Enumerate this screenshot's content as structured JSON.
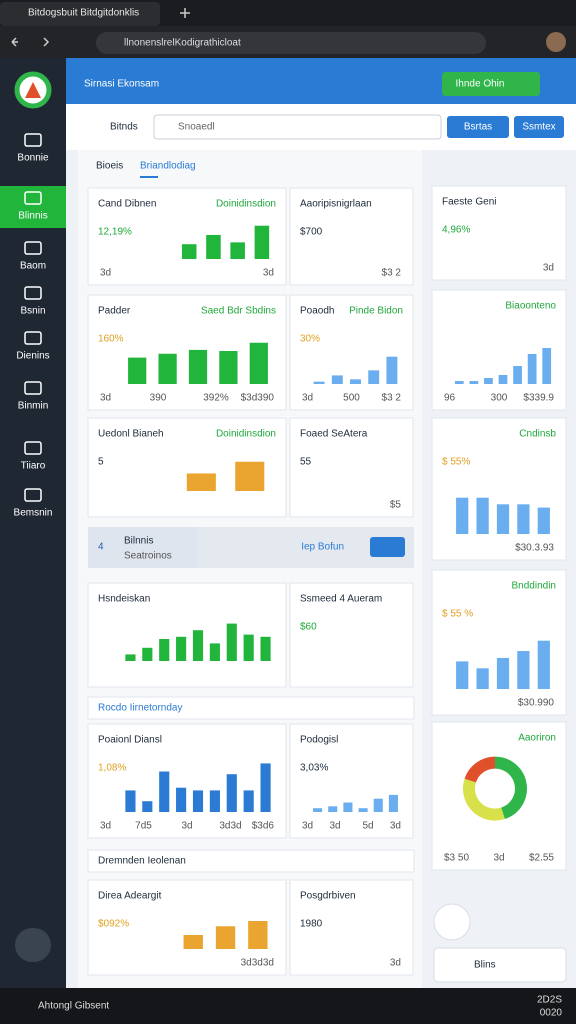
{
  "browser": {
    "tab": "Bitdogsbuit Bitdgitdonklis",
    "url": "llnonenslrelKodigrathicloat"
  },
  "sidebar": [
    "Bonnie",
    "Blinnis",
    "Baom",
    "Bsnin",
    "Dienins",
    "Binmin",
    "Tiiaro",
    "Bemsnin"
  ],
  "header": {
    "title": "Sirnasi Ekonsam",
    "button": "Ihnde Ohin"
  },
  "toolbar": {
    "label": "Bitnds",
    "search": "Snoaedl",
    "buttons": [
      "Bsrtas",
      "Ssmtex"
    ]
  },
  "tabs": [
    "Bioeis",
    "Briandlodiag"
  ],
  "cards": [
    {
      "title": "Cand Dibnen",
      "tag": "Doinidinsdion",
      "value": "12,19%",
      "value_color": "#1fa83a",
      "foot": [
        "3d",
        "3d"
      ],
      "color": "#22b53c",
      "bars": [
        40,
        65,
        45,
        90
      ]
    },
    {
      "title": "Aaoripisnigrlaan",
      "value": "$700",
      "value_color": "#1d2a3a",
      "foot": [
        "$3 2"
      ]
    },
    {
      "title": "Padder",
      "tag": "Saed Bdr Sbdins",
      "value": "160%",
      "value_color": "#e0a020",
      "foot": [
        "3d",
        "390",
        "392%",
        "$3d390"
      ],
      "color": "#22b53c",
      "bars": [
        48,
        55,
        62,
        60,
        75
      ]
    },
    {
      "title": "Poaodh",
      "tag": "Pinde Bidon",
      "value": "30%",
      "value_color": "#e0a020",
      "foot": [
        "3d",
        "500",
        "$3 2"
      ],
      "color": "#6aaef0",
      "bars": [
        6,
        22,
        12,
        35,
        70
      ]
    },
    {
      "title": "Uedonl Bianeh",
      "tag": "Doinidinsdion",
      "value": "5",
      "value_color": "#1d2a3a",
      "foot": [],
      "color": "#eaa530",
      "bars": [
        45,
        75
      ]
    },
    {
      "title": "Foaed SeAtera",
      "value": "55",
      "value_color": "#1d2a3a",
      "foot": [
        "$5"
      ]
    },
    {
      "title": "Hsndeiskan",
      "foot": [],
      "color": "#22b53c",
      "bars": [
        15,
        30,
        50,
        55,
        70,
        40,
        85,
        60,
        55
      ]
    },
    {
      "title": "Ssmeed 4 Aueram",
      "value": "$60",
      "value_color": "#1fa83a",
      "foot": []
    },
    {
      "title": "Poaionl Diansl",
      "value": "1,08%",
      "value_color": "#e0a020",
      "foot": [
        "3d",
        "7d5",
        "3d",
        "3d3d",
        "$3d6"
      ],
      "color": "#2b7bd4",
      "bars": [
        40,
        20,
        75,
        45,
        40,
        40,
        70,
        40,
        90
      ]
    },
    {
      "title": "Podogisl",
      "value": "3,03%",
      "value_color": "#1d2a3a",
      "foot": [
        "3d",
        "3d",
        "5d",
        "3d"
      ],
      "color": "#6aaef0",
      "bars": [
        10,
        15,
        25,
        10,
        35,
        45
      ]
    },
    {
      "title": "Direa Adeargit",
      "value": "$092%",
      "value_color": "#e0a020",
      "foot": [
        "3d3d3d"
      ],
      "color": "#eaa530",
      "bars": [
        40,
        65,
        80
      ]
    },
    {
      "title": "Posgdrbiven",
      "value": "1980",
      "value_color": "#1d2a3a",
      "foot": [
        "3d"
      ]
    }
  ],
  "banner": {
    "number": "4",
    "title": "Bilnnis",
    "subtitle": "Seatroinos",
    "link": "Iep Bofun"
  },
  "sections": [
    "Rocdo Iirnetornday",
    "Dremnden Ieolenan"
  ],
  "side_cards": [
    {
      "title": "Faeste Geni",
      "value": "4,96%",
      "value_color": "#1fa83a",
      "foot": [
        "3d"
      ]
    },
    {
      "tag": "Biaoonteno",
      "foot": [
        "96",
        "300",
        "$339.9"
      ],
      "color": "#6aaef0",
      "bars": [
        5,
        5,
        10,
        15,
        30,
        50,
        60
      ]
    },
    {
      "tag": "Cndinsb",
      "value": "$ 55%",
      "value_color": "#e0a020",
      "foot": [
        "$30.3.93"
      ],
      "color": "#6aaef0",
      "bars": [
        55,
        55,
        45,
        45,
        40
      ]
    },
    {
      "tag": "Bnddindin",
      "value": "$ 55 %",
      "value_color": "#e0a020",
      "foot": [
        "$30.990"
      ],
      "color": "#6aaef0",
      "bars": [
        40,
        30,
        45,
        55,
        70
      ]
    },
    {
      "tag": "Aaoriron",
      "foot": [
        "$3 50",
        "3d",
        "$2.55"
      ],
      "donut": [
        45,
        35,
        20
      ],
      "colors": [
        "#2fb54a",
        "#d8e04a",
        "#e0502a"
      ]
    }
  ],
  "float": "Blins",
  "taskbar": {
    "app": "Ahtongl Gibsent",
    "time": "2D2S",
    "date": "0020"
  }
}
